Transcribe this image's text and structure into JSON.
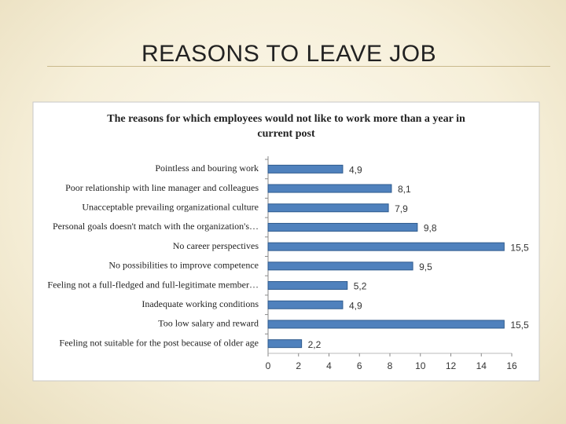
{
  "header": {
    "title": "REASONS TO LEAVE JOB"
  },
  "chart_data": {
    "type": "bar",
    "orientation": "horizontal",
    "title": "The reasons for which employees would not like to work more than a year in current post",
    "categories": [
      "Pointless and bouring work",
      "Poor relationship with line manager and colleagues",
      "Unacceptable prevailing organizational culture",
      "Personal goals doesn't match with the organization's…",
      "No career perspectives",
      "No possibilities to improve competence",
      "Feeling not a full-fledged and full-legitimate member…",
      "Inadequate working conditions",
      "Too low salary and reward",
      "Feeling not suitable for the post because of older age"
    ],
    "values": [
      4.9,
      8.1,
      7.9,
      9.8,
      15.5,
      9.5,
      5.2,
      4.9,
      15.5,
      2.2
    ],
    "value_labels": [
      "4,9",
      "8,1",
      "7,9",
      "9,8",
      "15,5",
      "9,5",
      "5,2",
      "4,9",
      "15,5",
      "2,2"
    ],
    "color": "#4f81bd",
    "xlim": [
      0,
      16
    ],
    "xticks": [
      0,
      2,
      4,
      6,
      8,
      10,
      12,
      14,
      16
    ]
  }
}
